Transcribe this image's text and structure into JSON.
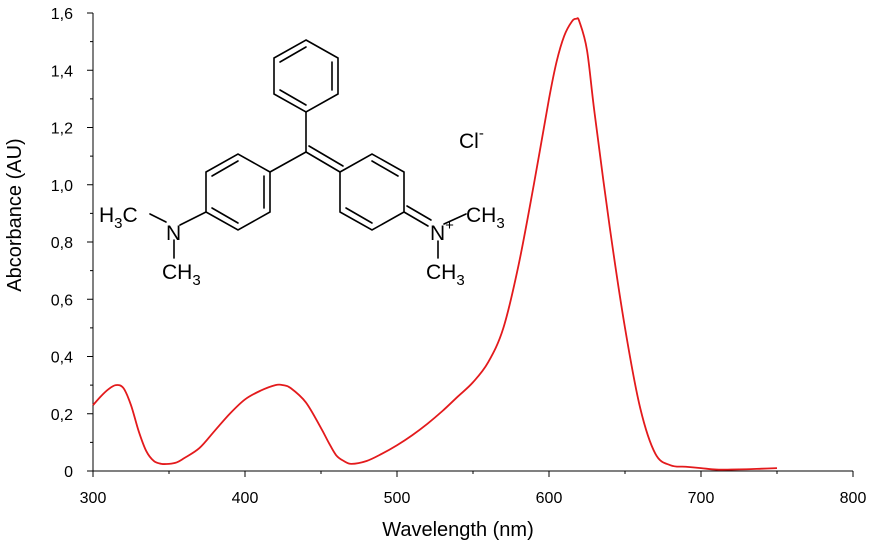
{
  "chart_data": {
    "type": "line",
    "xlabel": "Wavelength (nm)",
    "ylabel": "Abcorbance (AU)",
    "xlim": [
      300,
      800
    ],
    "ylim": [
      0,
      1.6
    ],
    "x_ticks": [
      "300",
      "400",
      "500",
      "600",
      "700",
      "800"
    ],
    "y_ticks": [
      "0",
      "0,2",
      "0,4",
      "0,6",
      "0,8",
      "1,0",
      "1,2",
      "1,4",
      "1,6"
    ],
    "grid": false,
    "series": [
      {
        "color": "#e31a1c",
        "x": [
          300,
          305,
          310,
          315,
          320,
          325,
          330,
          335,
          340,
          345,
          350,
          355,
          360,
          370,
          380,
          390,
          400,
          410,
          420,
          425,
          430,
          440,
          450,
          455,
          460,
          465,
          470,
          480,
          490,
          500,
          510,
          520,
          530,
          540,
          550,
          560,
          570,
          580,
          590,
          600,
          605,
          610,
          615,
          618,
          620,
          625,
          630,
          640,
          650,
          660,
          670,
          680,
          690,
          700,
          710,
          720,
          730,
          740,
          750
        ],
        "y": [
          0.23,
          0.26,
          0.285,
          0.3,
          0.29,
          0.23,
          0.14,
          0.07,
          0.035,
          0.025,
          0.025,
          0.03,
          0.045,
          0.08,
          0.14,
          0.2,
          0.25,
          0.28,
          0.3,
          0.3,
          0.29,
          0.24,
          0.15,
          0.1,
          0.055,
          0.035,
          0.025,
          0.035,
          0.06,
          0.09,
          0.125,
          0.165,
          0.21,
          0.26,
          0.31,
          0.38,
          0.5,
          0.72,
          1.0,
          1.3,
          1.43,
          1.52,
          1.57,
          1.58,
          1.57,
          1.47,
          1.25,
          0.85,
          0.5,
          0.22,
          0.06,
          0.02,
          0.015,
          0.01,
          0.005,
          0.005,
          0.006,
          0.008,
          0.01
        ]
      }
    ]
  },
  "structure": {
    "counter_ion": "Cl",
    "counter_ion_charge": "-",
    "left_group": {
      "h": "H",
      "h_sub": "3",
      "c": "C",
      "n": "N",
      "ch": "CH",
      "ch_sub": "3"
    },
    "right_group": {
      "n": "N",
      "n_charge": "+",
      "ch_top": "CH",
      "ch_top_sub": "3",
      "ch_bot": "CH",
      "ch_bot_sub": "3"
    }
  }
}
